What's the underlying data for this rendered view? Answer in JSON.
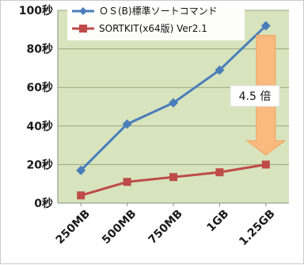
{
  "colors": {
    "plot_bg": "#D7E4BD",
    "os_series": "#4A7EBB",
    "sortkit_series": "#BE4B48",
    "arrow": "#F9B97F",
    "grid": "#9BA77A"
  },
  "chart_data": {
    "type": "line",
    "title": "",
    "xlabel": "",
    "ylabel": "",
    "categories": [
      "250MB",
      "500MB",
      "750MB",
      "1GB",
      "1.25GB"
    ],
    "yticks": [
      "0秒",
      "20秒",
      "40秒",
      "60秒",
      "80秒",
      "100秒"
    ],
    "ylim": [
      0,
      100
    ],
    "grid": true,
    "legend_position": "top",
    "series": [
      {
        "name": "ＯＳ(B)標準ソートコマンド",
        "color": "#4A7EBB",
        "marker": "diamond",
        "values": [
          17,
          41,
          52,
          69,
          92
        ]
      },
      {
        "name": "SORTKIT(x64版) Ver2.1",
        "color": "#BE4B48",
        "marker": "square",
        "values": [
          4,
          11,
          13.5,
          16,
          20
        ]
      }
    ],
    "annotation": {
      "text": "4.5 倍",
      "arrow": "down"
    }
  }
}
